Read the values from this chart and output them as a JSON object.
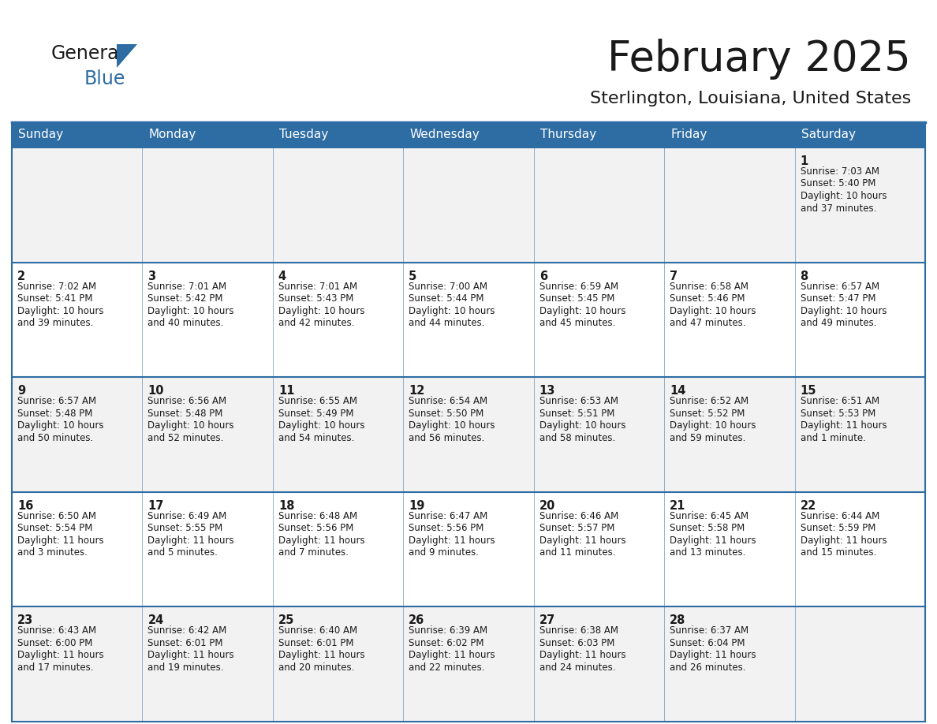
{
  "title": "February 2025",
  "subtitle": "Sterlington, Louisiana, United States",
  "header_bg": "#2E6DA4",
  "header_text": "#FFFFFF",
  "cell_bg_odd": "#F2F2F2",
  "cell_bg_even": "#FFFFFF",
  "border_color": "#2E6DA4",
  "text_color": "#1a1a1a",
  "logo_color_general": "#1a1a1a",
  "logo_color_blue": "#2E6DA4",
  "day_headers": [
    "Sunday",
    "Monday",
    "Tuesday",
    "Wednesday",
    "Thursday",
    "Friday",
    "Saturday"
  ],
  "days": [
    {
      "day": 1,
      "col": 6,
      "row": 0,
      "sunrise": "7:03 AM",
      "sunset": "5:40 PM",
      "daylight_h": "10 hours",
      "daylight_m": "and 37 minutes."
    },
    {
      "day": 2,
      "col": 0,
      "row": 1,
      "sunrise": "7:02 AM",
      "sunset": "5:41 PM",
      "daylight_h": "10 hours",
      "daylight_m": "and 39 minutes."
    },
    {
      "day": 3,
      "col": 1,
      "row": 1,
      "sunrise": "7:01 AM",
      "sunset": "5:42 PM",
      "daylight_h": "10 hours",
      "daylight_m": "and 40 minutes."
    },
    {
      "day": 4,
      "col": 2,
      "row": 1,
      "sunrise": "7:01 AM",
      "sunset": "5:43 PM",
      "daylight_h": "10 hours",
      "daylight_m": "and 42 minutes."
    },
    {
      "day": 5,
      "col": 3,
      "row": 1,
      "sunrise": "7:00 AM",
      "sunset": "5:44 PM",
      "daylight_h": "10 hours",
      "daylight_m": "and 44 minutes."
    },
    {
      "day": 6,
      "col": 4,
      "row": 1,
      "sunrise": "6:59 AM",
      "sunset": "5:45 PM",
      "daylight_h": "10 hours",
      "daylight_m": "and 45 minutes."
    },
    {
      "day": 7,
      "col": 5,
      "row": 1,
      "sunrise": "6:58 AM",
      "sunset": "5:46 PM",
      "daylight_h": "10 hours",
      "daylight_m": "and 47 minutes."
    },
    {
      "day": 8,
      "col": 6,
      "row": 1,
      "sunrise": "6:57 AM",
      "sunset": "5:47 PM",
      "daylight_h": "10 hours",
      "daylight_m": "and 49 minutes."
    },
    {
      "day": 9,
      "col": 0,
      "row": 2,
      "sunrise": "6:57 AM",
      "sunset": "5:48 PM",
      "daylight_h": "10 hours",
      "daylight_m": "and 50 minutes."
    },
    {
      "day": 10,
      "col": 1,
      "row": 2,
      "sunrise": "6:56 AM",
      "sunset": "5:48 PM",
      "daylight_h": "10 hours",
      "daylight_m": "and 52 minutes."
    },
    {
      "day": 11,
      "col": 2,
      "row": 2,
      "sunrise": "6:55 AM",
      "sunset": "5:49 PM",
      "daylight_h": "10 hours",
      "daylight_m": "and 54 minutes."
    },
    {
      "day": 12,
      "col": 3,
      "row": 2,
      "sunrise": "6:54 AM",
      "sunset": "5:50 PM",
      "daylight_h": "10 hours",
      "daylight_m": "and 56 minutes."
    },
    {
      "day": 13,
      "col": 4,
      "row": 2,
      "sunrise": "6:53 AM",
      "sunset": "5:51 PM",
      "daylight_h": "10 hours",
      "daylight_m": "and 58 minutes."
    },
    {
      "day": 14,
      "col": 5,
      "row": 2,
      "sunrise": "6:52 AM",
      "sunset": "5:52 PM",
      "daylight_h": "10 hours",
      "daylight_m": "and 59 minutes."
    },
    {
      "day": 15,
      "col": 6,
      "row": 2,
      "sunrise": "6:51 AM",
      "sunset": "5:53 PM",
      "daylight_h": "11 hours",
      "daylight_m": "and 1 minute."
    },
    {
      "day": 16,
      "col": 0,
      "row": 3,
      "sunrise": "6:50 AM",
      "sunset": "5:54 PM",
      "daylight_h": "11 hours",
      "daylight_m": "and 3 minutes."
    },
    {
      "day": 17,
      "col": 1,
      "row": 3,
      "sunrise": "6:49 AM",
      "sunset": "5:55 PM",
      "daylight_h": "11 hours",
      "daylight_m": "and 5 minutes."
    },
    {
      "day": 18,
      "col": 2,
      "row": 3,
      "sunrise": "6:48 AM",
      "sunset": "5:56 PM",
      "daylight_h": "11 hours",
      "daylight_m": "and 7 minutes."
    },
    {
      "day": 19,
      "col": 3,
      "row": 3,
      "sunrise": "6:47 AM",
      "sunset": "5:56 PM",
      "daylight_h": "11 hours",
      "daylight_m": "and 9 minutes."
    },
    {
      "day": 20,
      "col": 4,
      "row": 3,
      "sunrise": "6:46 AM",
      "sunset": "5:57 PM",
      "daylight_h": "11 hours",
      "daylight_m": "and 11 minutes."
    },
    {
      "day": 21,
      "col": 5,
      "row": 3,
      "sunrise": "6:45 AM",
      "sunset": "5:58 PM",
      "daylight_h": "11 hours",
      "daylight_m": "and 13 minutes."
    },
    {
      "day": 22,
      "col": 6,
      "row": 3,
      "sunrise": "6:44 AM",
      "sunset": "5:59 PM",
      "daylight_h": "11 hours",
      "daylight_m": "and 15 minutes."
    },
    {
      "day": 23,
      "col": 0,
      "row": 4,
      "sunrise": "6:43 AM",
      "sunset": "6:00 PM",
      "daylight_h": "11 hours",
      "daylight_m": "and 17 minutes."
    },
    {
      "day": 24,
      "col": 1,
      "row": 4,
      "sunrise": "6:42 AM",
      "sunset": "6:01 PM",
      "daylight_h": "11 hours",
      "daylight_m": "and 19 minutes."
    },
    {
      "day": 25,
      "col": 2,
      "row": 4,
      "sunrise": "6:40 AM",
      "sunset": "6:01 PM",
      "daylight_h": "11 hours",
      "daylight_m": "and 20 minutes."
    },
    {
      "day": 26,
      "col": 3,
      "row": 4,
      "sunrise": "6:39 AM",
      "sunset": "6:02 PM",
      "daylight_h": "11 hours",
      "daylight_m": "and 22 minutes."
    },
    {
      "day": 27,
      "col": 4,
      "row": 4,
      "sunrise": "6:38 AM",
      "sunset": "6:03 PM",
      "daylight_h": "11 hours",
      "daylight_m": "and 24 minutes."
    },
    {
      "day": 28,
      "col": 5,
      "row": 4,
      "sunrise": "6:37 AM",
      "sunset": "6:04 PM",
      "daylight_h": "11 hours",
      "daylight_m": "and 26 minutes."
    }
  ]
}
